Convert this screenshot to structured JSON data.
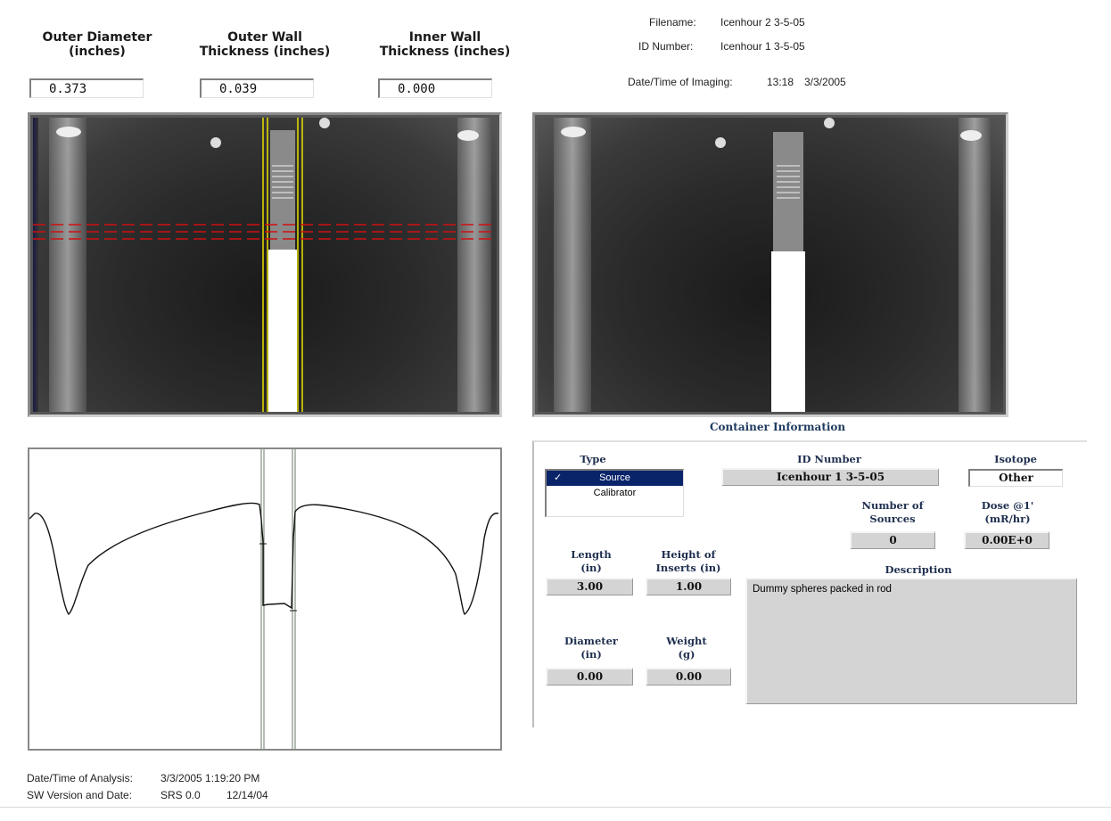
{
  "measurements": [
    {
      "label_line1": "Outer Diameter",
      "label_line2": "(inches)",
      "value": "0.373"
    },
    {
      "label_line1": "Outer Wall",
      "label_line2": "Thickness (inches)",
      "value": "0.039"
    },
    {
      "label_line1": "Inner Wall",
      "label_line2": "Thickness (inches)",
      "value": "0.000"
    }
  ],
  "header": {
    "filename_label": "Filename:",
    "filename_value": "Icenhour 2 3-5-05",
    "id_label": "ID Number:",
    "id_value": "Icenhour 1 3-5-05",
    "imaging_label": "Date/Time of Imaging:",
    "imaging_time": "13:18",
    "imaging_date": "3/3/2005"
  },
  "container": {
    "title": "Container Information",
    "type_label": "Type",
    "type_options": [
      "Source",
      "Calibrator"
    ],
    "type_selected": "Source",
    "type_check": "✓",
    "id_label": "ID Number",
    "id_value": "Icenhour 1 3-5-05",
    "isotope_label": "Isotope",
    "isotope_value": "Other",
    "num_sources_line1": "Number of",
    "num_sources_line2": "Sources",
    "num_sources_value": "0",
    "dose_line1": "Dose @1'",
    "dose_line2": "(mR/hr)",
    "dose_value": "0.00E+0",
    "length_line1": "Length",
    "length_line2": "(in)",
    "length_value": "3.00",
    "inserts_line1": "Height of",
    "inserts_line2": "Inserts (in)",
    "inserts_value": "1.00",
    "description_label": "Description",
    "description_value": "Dummy spheres packed in rod",
    "diameter_line1": "Diameter",
    "diameter_line2": "(in)",
    "diameter_value": "0.00",
    "weight_line1": "Weight",
    "weight_line2": "(g)",
    "weight_value": "0.00"
  },
  "footer": {
    "analysis_label": "Date/Time of Analysis:",
    "analysis_value": "3/3/2005 1:19:20 PM",
    "version_label": "SW Version and Date:",
    "version_value": "SRS 0.0",
    "version_date": "12/14/04"
  },
  "colors": {
    "selection": "#0a246a",
    "measure_line": "#e8e000",
    "scan_line": "#d01010",
    "label_navy": "#1f2f4f"
  },
  "icons": {
    "check": "check-icon"
  }
}
